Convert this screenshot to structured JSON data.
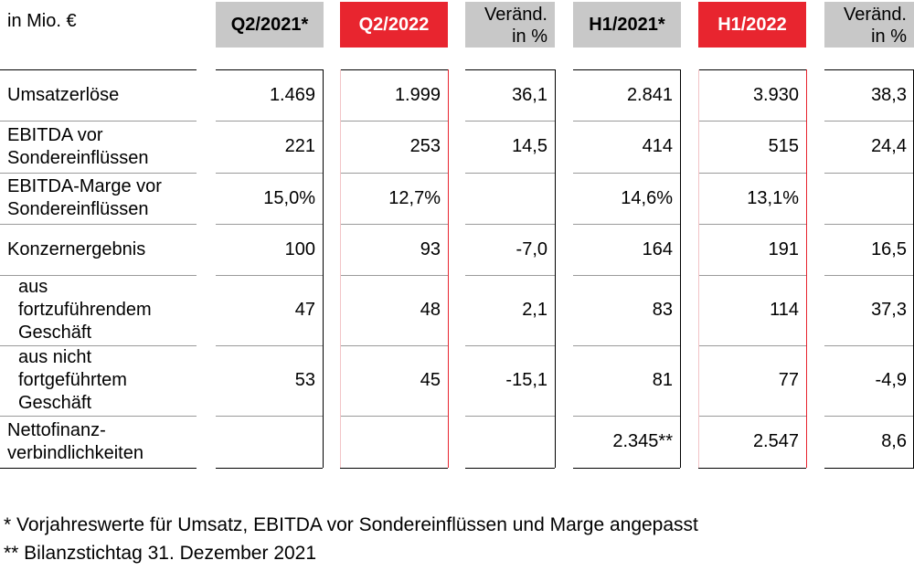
{
  "table": {
    "unit_label": "in Mio. €",
    "headers": {
      "q2_2021": "Q2/2021*",
      "q2_2022": "Q2/2022",
      "chg_q": [
        "Veränd.",
        "in %"
      ],
      "h1_2021": "H1/2021*",
      "h1_2022": "H1/2022",
      "chg_h": [
        "Veränd.",
        "in %"
      ]
    },
    "rows": [
      {
        "label": [
          "Umsatzerlöse"
        ],
        "values": [
          "1.469",
          "1.999",
          "36,1",
          "2.841",
          "3.930",
          "38,3"
        ]
      },
      {
        "label": [
          "EBITDA vor",
          "Sondereinflüssen"
        ],
        "values": [
          "221",
          "253",
          "14,5",
          "414",
          "515",
          "24,4"
        ]
      },
      {
        "label": [
          "EBITDA-Marge vor",
          "Sondereinflüssen"
        ],
        "values": [
          "15,0%",
          "12,7%",
          "",
          "14,6%",
          "13,1%",
          ""
        ]
      },
      {
        "label": [
          "Konzernergebnis"
        ],
        "values": [
          "100",
          "93",
          "-7,0",
          "164",
          "191",
          "16,5"
        ]
      },
      {
        "label": [
          "aus",
          "fortzuführendem",
          "Geschäft"
        ],
        "values": [
          "47",
          "48",
          "2,1",
          "83",
          "114",
          "37,3"
        ]
      },
      {
        "label": [
          "aus nicht",
          "fortgeführtem",
          "Geschäft"
        ],
        "values": [
          "53",
          "45",
          "-15,1",
          "81",
          "77",
          "-4,9"
        ]
      },
      {
        "label": [
          "Nettofinanz-",
          "verbindlichkeiten"
        ],
        "values": [
          "",
          "",
          "",
          "2.345**",
          "2.547",
          "8,6"
        ]
      }
    ]
  },
  "footnotes": {
    "note1": "*  Vorjahreswerte für Umsatz, EBITDA vor Sondereinflüssen und Marge angepasst",
    "note2": "** Bilanzstichtag 31. Dezember 2021"
  },
  "colors": {
    "accent_red": "#e8252f",
    "header_grey": "#c8c8c8"
  }
}
